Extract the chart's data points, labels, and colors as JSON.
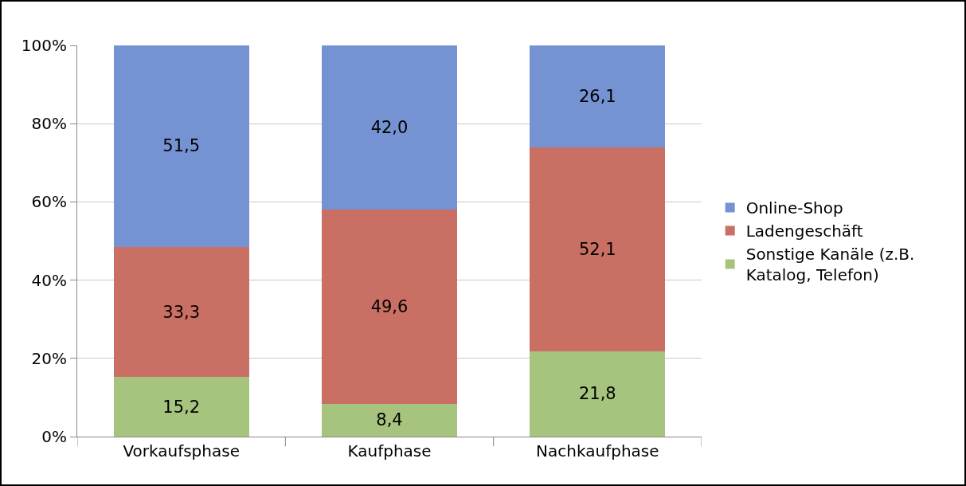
{
  "chart_data": {
    "type": "bar",
    "stacked": true,
    "categories": [
      "Vorkaufsphase",
      "Kaufphase",
      "Nachkaufphase"
    ],
    "series": [
      {
        "name": "Sonstige Kanäle (z.B. Katalog, Telefon)",
        "color": "#a6c47e",
        "values": [
          15.2,
          8.4,
          21.8
        ],
        "value_labels": [
          "15,2",
          "8,4",
          "21,8"
        ]
      },
      {
        "name": "Ladengeschäft",
        "color": "#c96f63",
        "values": [
          33.3,
          49.6,
          52.1
        ],
        "value_labels": [
          "33,3",
          "49,6",
          "52,1"
        ]
      },
      {
        "name": "Online-Shop",
        "color": "#7592d2",
        "values": [
          51.5,
          42.0,
          26.1
        ],
        "value_labels": [
          "51,5",
          "42,0",
          "26,1"
        ]
      }
    ],
    "ylim": [
      0,
      100
    ],
    "yticks": [
      {
        "value": 0,
        "label": "0%"
      },
      {
        "value": 20,
        "label": "20%"
      },
      {
        "value": 40,
        "label": "40%"
      },
      {
        "value": 60,
        "label": "60%"
      },
      {
        "value": 80,
        "label": "80%"
      },
      {
        "value": 100,
        "label": "100%"
      }
    ],
    "grid": "y",
    "legend": "right"
  }
}
